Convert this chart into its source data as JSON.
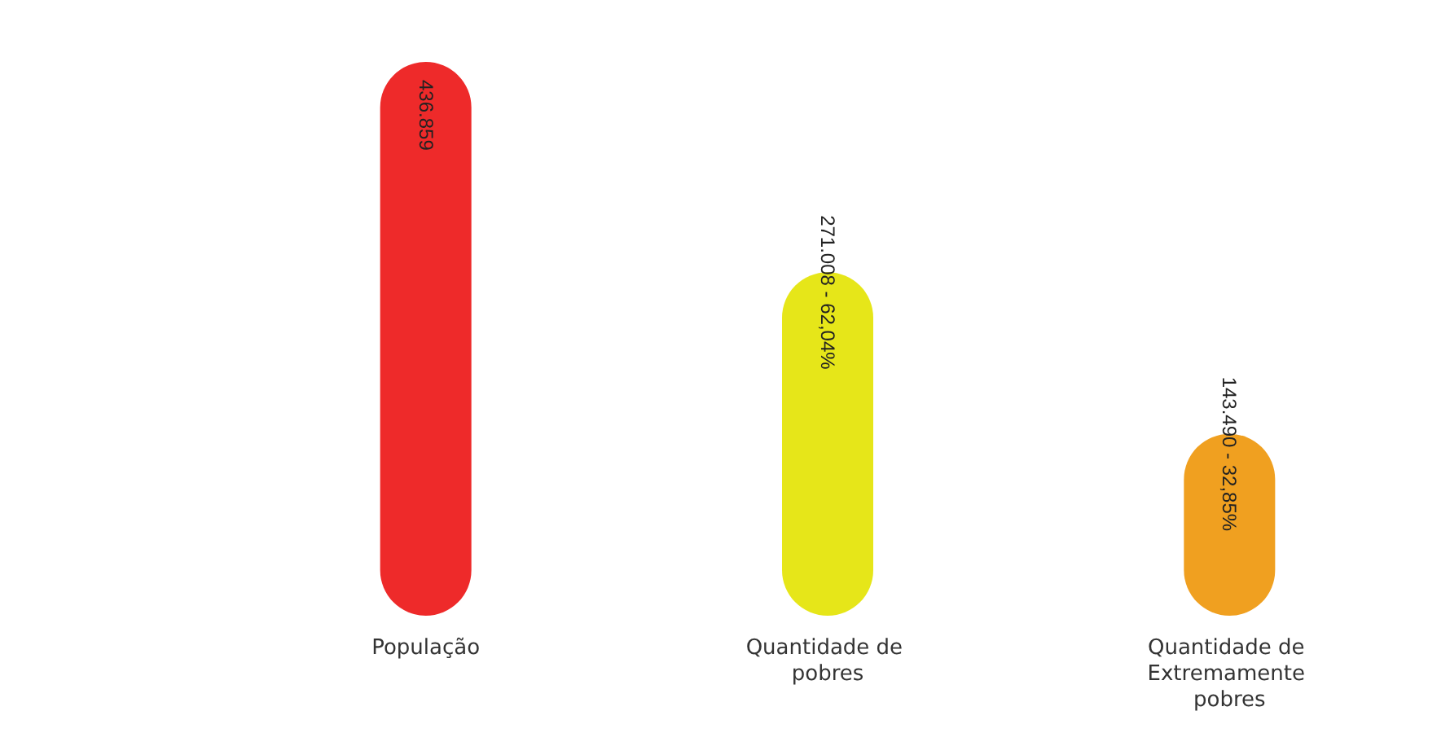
{
  "chart_data": {
    "type": "bar",
    "categories": [
      "População",
      "Quantidade de pobres",
      "Quantidade de Extremamente pobres"
    ],
    "values": [
      436859,
      271008,
      143490
    ],
    "colors": [
      "#ee2a2a",
      "#e6e619",
      "#f0a020"
    ],
    "value_labels": [
      "436.859",
      "271.008 - 62,04%",
      "143.490 - 32,85%"
    ],
    "grid": false
  }
}
